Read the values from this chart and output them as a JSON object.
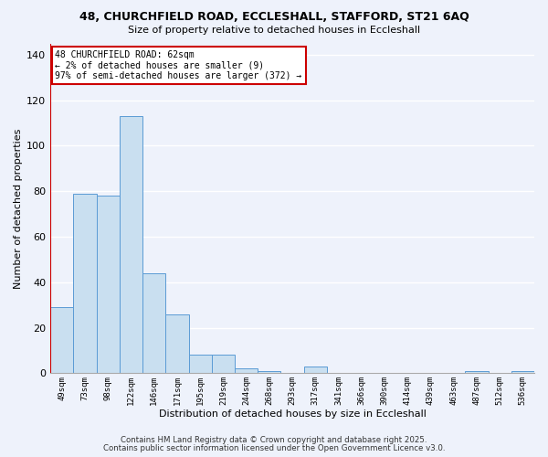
{
  "title_line1": "48, CHURCHFIELD ROAD, ECCLESHALL, STAFFORD, ST21 6AQ",
  "title_line2": "Size of property relative to detached houses in Eccleshall",
  "xlabel": "Distribution of detached houses by size in Eccleshall",
  "ylabel": "Number of detached properties",
  "bar_labels": [
    "49sqm",
    "73sqm",
    "98sqm",
    "122sqm",
    "146sqm",
    "171sqm",
    "195sqm",
    "219sqm",
    "244sqm",
    "268sqm",
    "293sqm",
    "317sqm",
    "341sqm",
    "366sqm",
    "390sqm",
    "414sqm",
    "439sqm",
    "463sqm",
    "487sqm",
    "512sqm",
    "536sqm"
  ],
  "bar_values": [
    29,
    79,
    78,
    113,
    44,
    26,
    8,
    8,
    2,
    1,
    0,
    3,
    0,
    0,
    0,
    0,
    0,
    0,
    1,
    0,
    1
  ],
  "bar_color": "#c9dff0",
  "bar_edge_color": "#5b9bd5",
  "vline_color": "#cc0000",
  "annotation_text": "48 CHURCHFIELD ROAD: 62sqm\n← 2% of detached houses are smaller (9)\n97% of semi-detached houses are larger (372) →",
  "annotation_box_color": "white",
  "annotation_box_edge": "#cc0000",
  "ylim": [
    0,
    145
  ],
  "yticks": [
    0,
    20,
    40,
    60,
    80,
    100,
    120,
    140
  ],
  "background_color": "#eef2fb",
  "grid_color": "white",
  "footnote1": "Contains HM Land Registry data © Crown copyright and database right 2025.",
  "footnote2": "Contains public sector information licensed under the Open Government Licence v3.0."
}
